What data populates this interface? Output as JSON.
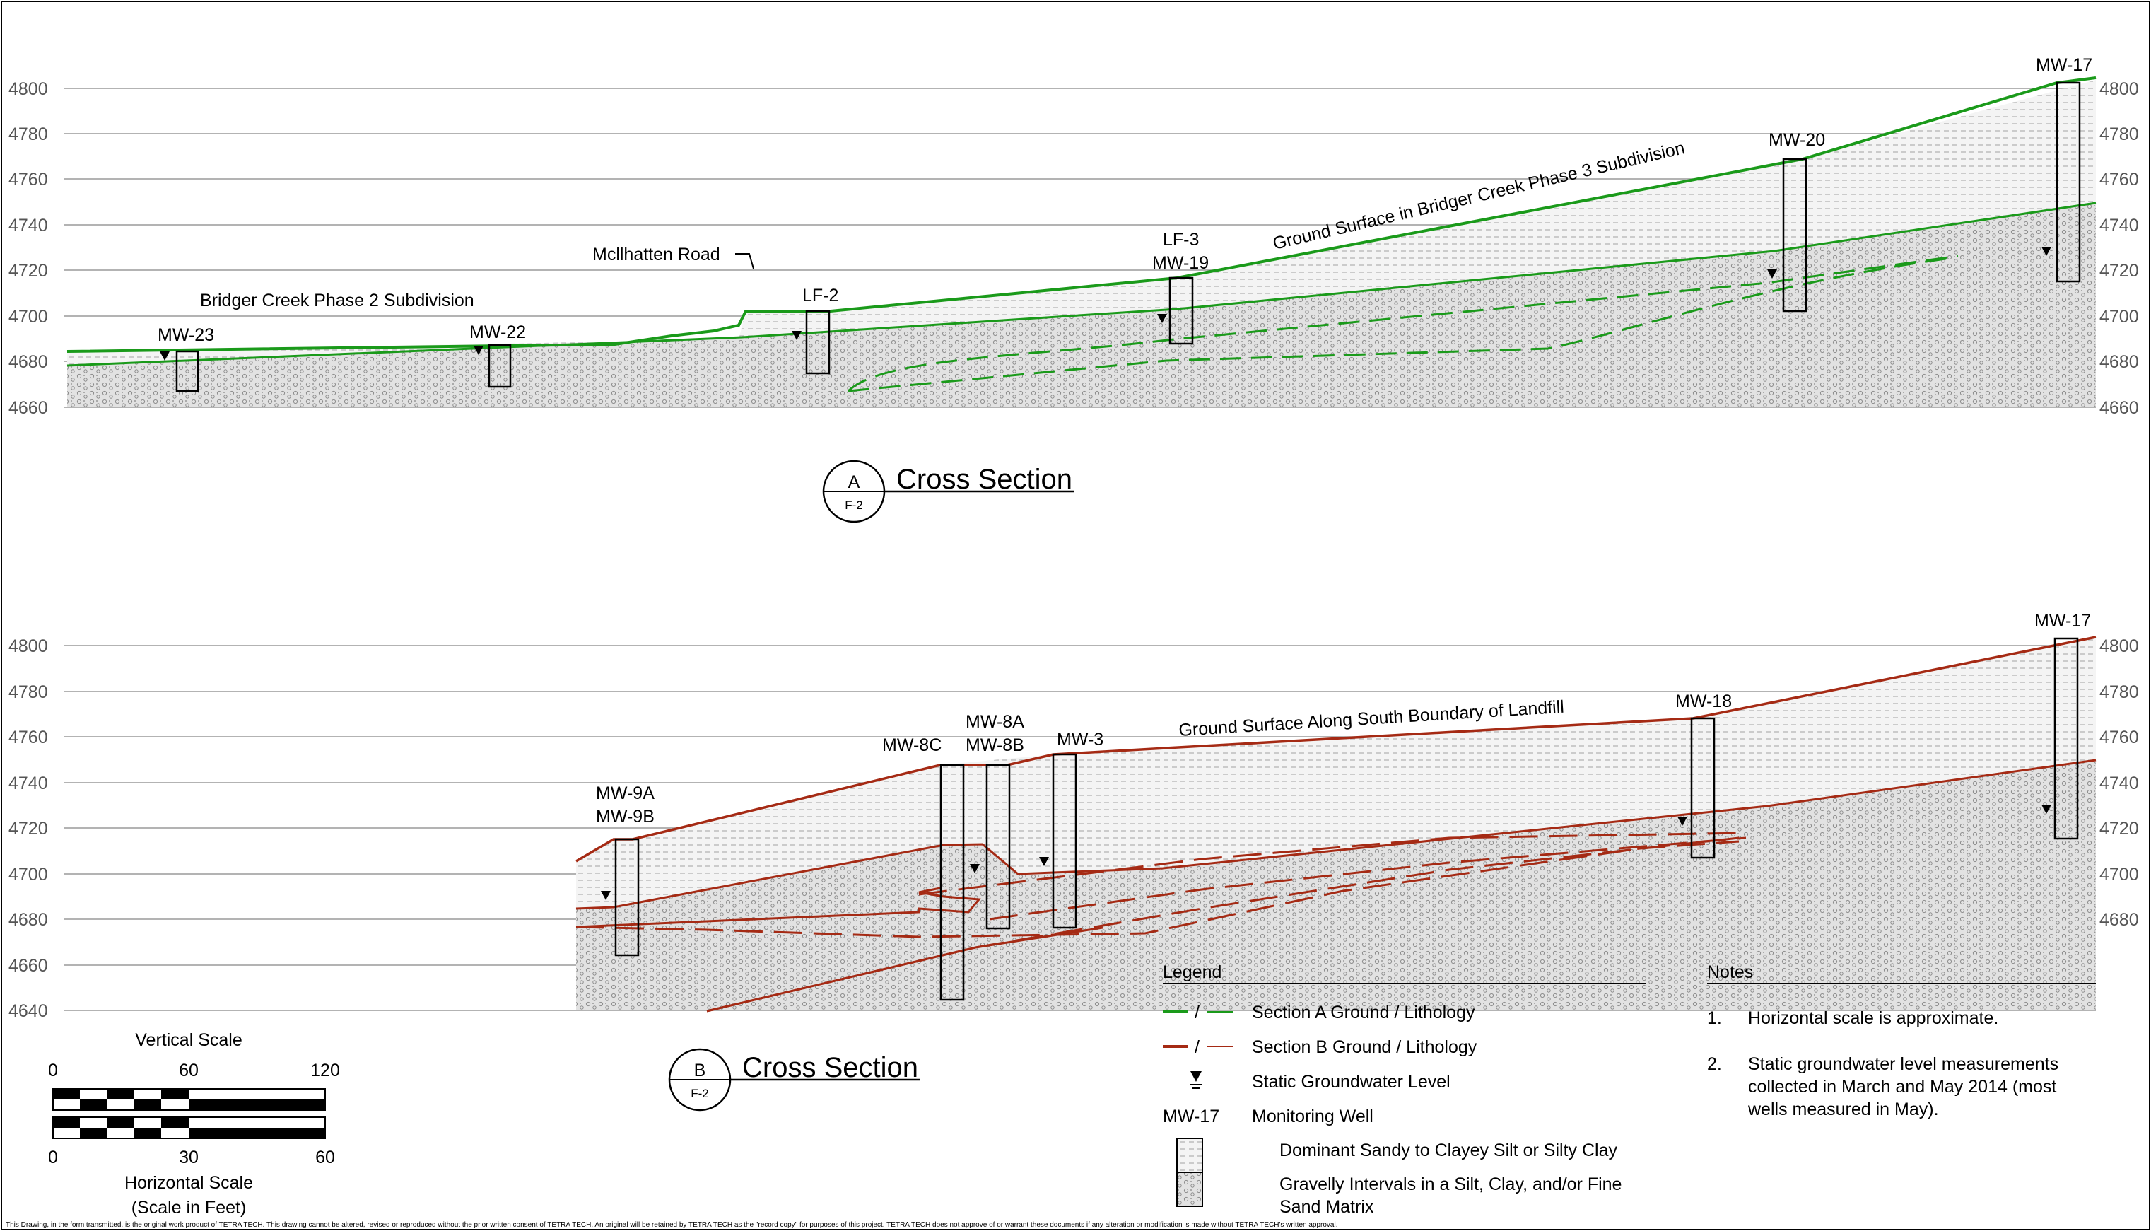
{
  "section_a": {
    "y_ticks": [
      "4800",
      "4780",
      "4760",
      "4740",
      "4720",
      "4700",
      "4680",
      "4660"
    ],
    "surface_label": "Ground Surface in Bridger Creek Phase 3 Subdivision",
    "phase2_label": "Bridger Creek Phase 2 Subdivision",
    "road_label": "Mcllhatten Road",
    "wells": [
      "MW-23",
      "MW-22",
      "LF-2",
      "LF-3",
      "MW-19",
      "MW-20",
      "MW-17"
    ],
    "title": "Cross Section",
    "marker_letter": "A",
    "marker_ref": "F-2"
  },
  "section_b": {
    "y_ticks": [
      "4800",
      "4780",
      "4760",
      "4740",
      "4720",
      "4700",
      "4680",
      "4660",
      "4640"
    ],
    "surface_label": "Ground Surface Along South Boundary of Landfill",
    "wells": [
      "MW-9A",
      "MW-9B",
      "MW-8C",
      "MW-8A",
      "MW-8B",
      "MW-3",
      "MW-18",
      "MW-17"
    ],
    "title": "Cross Section",
    "marker_letter": "B",
    "marker_ref": "F-2"
  },
  "scale": {
    "vertical_title": "Vertical Scale",
    "vertical_ticks": [
      "0",
      "60",
      "120"
    ],
    "horizontal_ticks": [
      "0",
      "30",
      "60"
    ],
    "horizontal_title": "Horizontal Scale",
    "units": "(Scale in Feet)"
  },
  "legend": {
    "title": "Legend",
    "items": [
      "Section A Ground / Lithology",
      "Section B Ground / Lithology",
      "Static Groundwater Level",
      "Monitoring Well",
      "Dominant Sandy to Clayey Silt or Silty Clay",
      "Gravelly Intervals in a Silt, Clay, and/or Fine",
      "Sand Matrix"
    ],
    "slash": "/",
    "well_example": "MW-17"
  },
  "notes": {
    "title": "Notes",
    "items": [
      {
        "num": "1.",
        "lines": [
          "Horizontal scale is approximate."
        ]
      },
      {
        "num": "2.",
        "lines": [
          "Static groundwater level measurements",
          "collected in March and May 2014 (most",
          "wells measured in May)."
        ]
      }
    ]
  },
  "disclaimer": "This Drawing, in the form transmitted, is the original work product of TETRA TECH. This drawing cannot be altered, revised or reproduced without the prior written consent of TETRA TECH. An original will be retained by TETRA TECH as the \"record copy\" for purposes of this project. TETRA TECH does not approve of or warrant these documents if any alteration or modification is made without TETRA TECH's written approval.",
  "colors": {
    "section_a": "#1a9a1a",
    "section_b": "#a52a14",
    "grid": "#9a9a9a",
    "fill_silt": "#f3f3f3",
    "fill_gravel": "#d6d6d6"
  }
}
